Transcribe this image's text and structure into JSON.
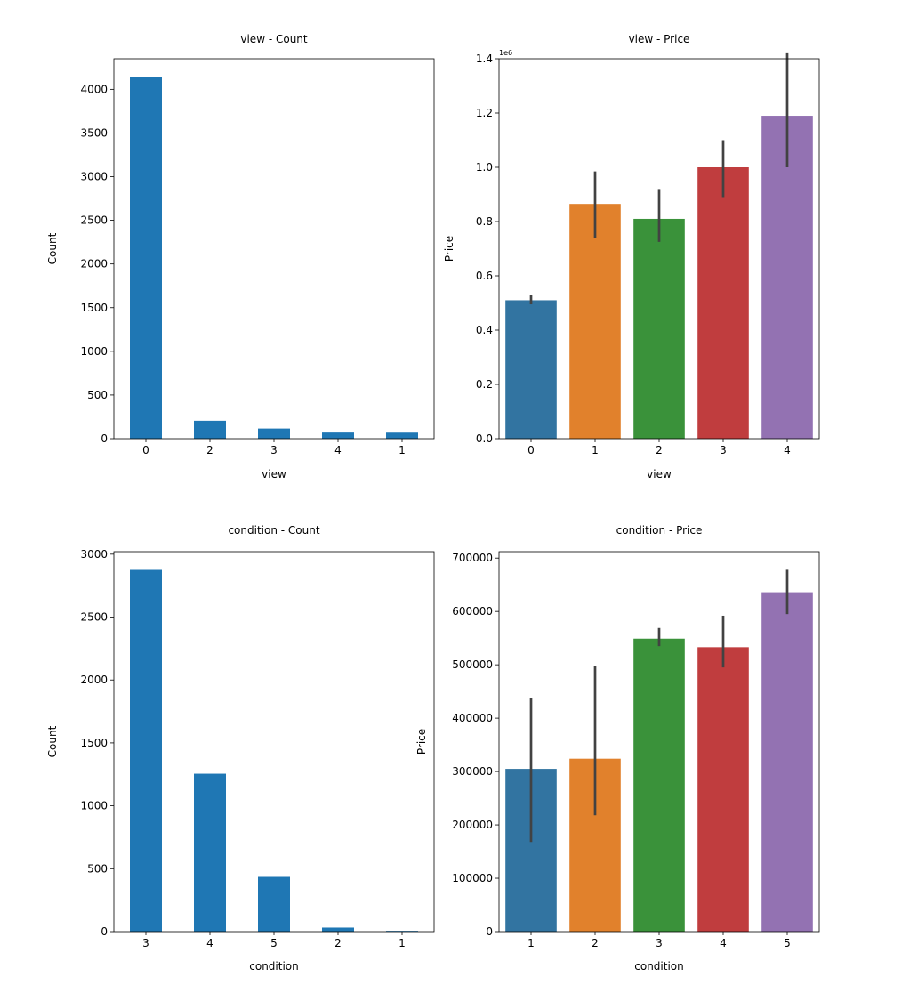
{
  "chart_data": [
    {
      "type": "bar",
      "title": "view - Count",
      "xlabel": "view",
      "ylabel": "Count",
      "categories": [
        "0",
        "2",
        "3",
        "4",
        "1"
      ],
      "values": [
        4140,
        205,
        116,
        70,
        69
      ],
      "ylim": [
        0,
        4350
      ],
      "yticks": [
        0,
        500,
        1000,
        1500,
        2000,
        2500,
        3000,
        3500,
        4000
      ],
      "ytick_labels": [
        "0",
        "500",
        "1000",
        "1500",
        "2000",
        "2500",
        "3000",
        "3500",
        "4000"
      ],
      "colors": [
        "#1f77b4"
      ],
      "grid": false
    },
    {
      "type": "bar",
      "title": "view - Price",
      "xlabel": "view",
      "ylabel": "Price",
      "scale_label": "1e6",
      "categories": [
        "0",
        "1",
        "2",
        "3",
        "4"
      ],
      "values": [
        0.51,
        0.865,
        0.81,
        1.0,
        1.19
      ],
      "error_low": [
        0.495,
        0.74,
        0.725,
        0.89,
        1.0
      ],
      "error_high": [
        0.53,
        0.985,
        0.92,
        1.1,
        1.42
      ],
      "ylim": [
        0,
        1.4
      ],
      "yticks": [
        0,
        0.2,
        0.4,
        0.6,
        0.8,
        1.0,
        1.2,
        1.4
      ],
      "ytick_labels": [
        "0.0",
        "0.2",
        "0.4",
        "0.6",
        "0.8",
        "1.0",
        "1.2",
        "1.4"
      ],
      "colors": [
        "#3274a1",
        "#e1812c",
        "#3a923a",
        "#c03d3e",
        "#9372b2"
      ],
      "grid": false
    },
    {
      "type": "bar",
      "title": "condition - Count",
      "xlabel": "condition",
      "ylabel": "Count",
      "categories": [
        "3",
        "4",
        "5",
        "2",
        "1"
      ],
      "values": [
        2875,
        1255,
        435,
        32,
        6
      ],
      "ylim": [
        0,
        3020
      ],
      "yticks": [
        0,
        500,
        1000,
        1500,
        2000,
        2500,
        3000
      ],
      "ytick_labels": [
        "0",
        "500",
        "1000",
        "1500",
        "2000",
        "2500",
        "3000"
      ],
      "colors": [
        "#1f77b4"
      ],
      "grid": false
    },
    {
      "type": "bar",
      "title": "condition - Price",
      "xlabel": "condition",
      "ylabel": "Price",
      "categories": [
        "1",
        "2",
        "3",
        "4",
        "5"
      ],
      "values": [
        305000,
        324000,
        549000,
        533000,
        636000
      ],
      "error_low": [
        168000,
        218000,
        535000,
        495000,
        595000
      ],
      "error_high": [
        438000,
        498000,
        569000,
        592000,
        678000
      ],
      "ylim": [
        0,
        712000
      ],
      "yticks": [
        0,
        100000,
        200000,
        300000,
        400000,
        500000,
        600000,
        700000
      ],
      "ytick_labels": [
        "0",
        "100000",
        "200000",
        "300000",
        "400000",
        "500000",
        "600000",
        "700000"
      ],
      "colors": [
        "#3274a1",
        "#e1812c",
        "#3a923a",
        "#c03d3e",
        "#9372b2"
      ],
      "grid": false
    }
  ]
}
